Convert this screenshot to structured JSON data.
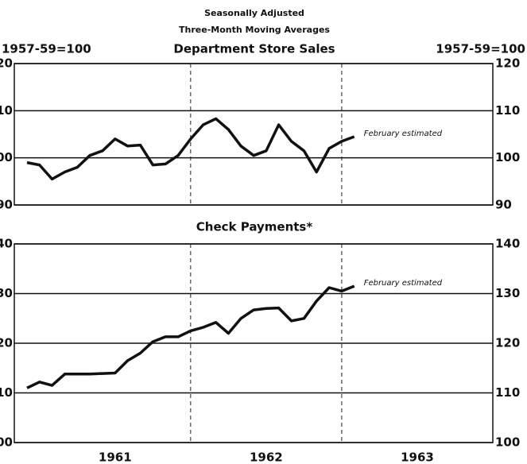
{
  "chart_data": [
    {
      "type": "line",
      "subtitle": "Seasonally Adjusted",
      "subtitle2": "Three-Month Moving Averages",
      "y_label_left": "1957-59=100",
      "y_label_right": "1957-59=100",
      "title": "Department Store Sales",
      "annotation": "February estimated",
      "x": [
        1960.917,
        1961.0,
        1961.083,
        1961.167,
        1961.25,
        1961.333,
        1961.417,
        1961.5,
        1961.583,
        1961.667,
        1961.75,
        1961.833,
        1961.917,
        1962.0,
        1962.083,
        1962.167,
        1962.25,
        1962.333,
        1962.417,
        1962.5,
        1962.583,
        1962.667,
        1962.75,
        1962.833,
        1962.917,
        1963.0,
        1963.083
      ],
      "series": [
        {
          "color": "#111111",
          "values": [
            99,
            98.5,
            95.5,
            97,
            98,
            100.5,
            101.5,
            104,
            102.5,
            102.7,
            98.5,
            98.7,
            100.5,
            104,
            107,
            108.3,
            106,
            102.5,
            100.5,
            101.5,
            107,
            103.5,
            101.5,
            97,
            102,
            103.5,
            104.5
          ]
        }
      ],
      "xlim": [
        1960.833,
        1964.0
      ],
      "ylim": [
        90,
        120
      ],
      "yticks": [
        90,
        100,
        110,
        120
      ],
      "year_lines": [
        1962,
        1963
      ],
      "grid": true
    },
    {
      "type": "line",
      "title": "Check Payments*",
      "annotation": "February estimated",
      "x": [
        1960.917,
        1961.0,
        1961.083,
        1961.167,
        1961.25,
        1961.333,
        1961.417,
        1961.5,
        1961.583,
        1961.667,
        1961.75,
        1961.833,
        1961.917,
        1962.0,
        1962.083,
        1962.167,
        1962.25,
        1962.333,
        1962.417,
        1962.5,
        1962.583,
        1962.667,
        1962.75,
        1962.833,
        1962.917,
        1963.0,
        1963.083
      ],
      "series": [
        {
          "color": "#111111",
          "values": [
            111,
            112.2,
            111.5,
            113.8,
            113.8,
            113.8,
            113.9,
            114,
            116.5,
            118,
            120.3,
            121.3,
            121.3,
            122.5,
            123.2,
            124.2,
            122,
            125,
            126.7,
            127,
            127.1,
            124.5,
            125,
            128.5,
            131.2,
            130.5,
            131.5
          ]
        }
      ],
      "xlim": [
        1960.833,
        1964.0
      ],
      "ylim": [
        100,
        140
      ],
      "yticks": [
        100,
        110,
        120,
        130,
        140
      ],
      "year_lines": [
        1962,
        1963
      ],
      "grid": true,
      "xticks": [
        {
          "value": 1961.5,
          "label": "1961"
        },
        {
          "value": 1962.5,
          "label": "1962"
        },
        {
          "value": 1963.5,
          "label": "1963"
        }
      ]
    }
  ]
}
